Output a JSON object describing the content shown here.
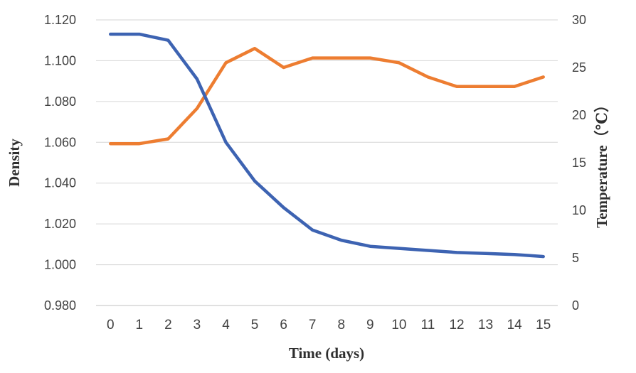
{
  "chart_data": {
    "type": "line",
    "title": "",
    "x": [
      0,
      1,
      2,
      3,
      4,
      5,
      6,
      7,
      8,
      9,
      10,
      11,
      12,
      13,
      14,
      15
    ],
    "series": [
      {
        "name": "Density",
        "axis": "left",
        "values": [
          1.113,
          1.113,
          1.11,
          1.091,
          1.06,
          1.041,
          1.028,
          1.017,
          1.012,
          1.009,
          1.008,
          1.007,
          1.006,
          1.0055,
          1.005,
          1.004
        ]
      },
      {
        "name": "Temperature",
        "axis": "right",
        "values": [
          17,
          17,
          17.5,
          20.7,
          25.5,
          27,
          25,
          26,
          26,
          26,
          25.5,
          24,
          23,
          23,
          23,
          24
        ]
      }
    ],
    "x_axis": {
      "label": "Time (days)",
      "tick_labels": [
        "0",
        "1",
        "2",
        "3",
        "4",
        "5",
        "6",
        "7",
        "8",
        "9",
        "10",
        "11",
        "12",
        "13",
        "14",
        "15"
      ]
    },
    "left_axis": {
      "label": "Density",
      "min": 0.98,
      "max": 1.12,
      "step": 0.02,
      "tick_labels": [
        "0.980",
        "1.000",
        "1.020",
        "1.040",
        "1.060",
        "1.080",
        "1.100",
        "1.120"
      ]
    },
    "right_axis": {
      "label": "Temperature（℃）",
      "min": 0,
      "max": 30,
      "step": 5,
      "tick_labels": [
        "0",
        "5",
        "10",
        "15",
        "20",
        "25",
        "30"
      ]
    },
    "grid": true,
    "legend": false
  },
  "colors": {
    "density_line": "#3d63b2",
    "temperature_line": "#ed7d31",
    "gridline": "#d6d6d6",
    "axis_line": "#c2c2c2",
    "tick_text": "#404040",
    "title_text": "#2f2f2f",
    "background": "#ffffff"
  }
}
